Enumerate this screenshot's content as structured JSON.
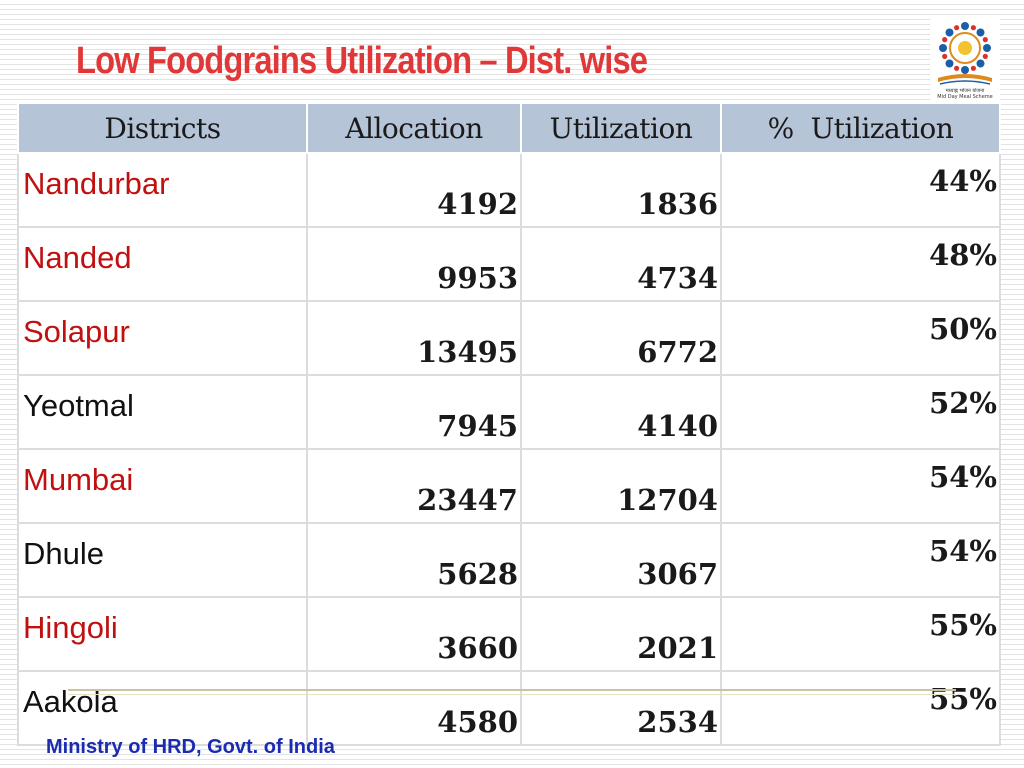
{
  "slide": {
    "title": "Low Foodgrains Utilization – Dist. wise",
    "footer": "Ministry of HRD, Govt. of India",
    "logo_caption_native": "मध्याह्न भोजन योजना",
    "logo_caption": "Mid Day Meal Scheme"
  },
  "table": {
    "headers": [
      "Districts",
      "Allocation",
      "Utilization",
      "%  Utilization"
    ],
    "rows": [
      {
        "district": "Nandurbar",
        "allocation": "4192",
        "utilization": "1836",
        "pct": "44%",
        "color": "#c01010"
      },
      {
        "district": "Nanded",
        "allocation": "9953",
        "utilization": "4734",
        "pct": "48%",
        "color": "#c01010"
      },
      {
        "district": "Solapur",
        "allocation": "13495",
        "utilization": "6772",
        "pct": "50%",
        "color": "#c01010"
      },
      {
        "district": "Yeotmal",
        "allocation": "7945",
        "utilization": "4140",
        "pct": "52%",
        "color": "#111111"
      },
      {
        "district": "Mumbai",
        "allocation": "23447",
        "utilization": "12704",
        "pct": "54%",
        "color": "#c01010"
      },
      {
        "district": "Dhule",
        "allocation": "5628",
        "utilization": "3067",
        "pct": "54%",
        "color": "#111111"
      },
      {
        "district": "Hingoli",
        "allocation": "3660",
        "utilization": "2021",
        "pct": "55%",
        "color": "#c01010"
      },
      {
        "district": "Aakola",
        "allocation": "4580",
        "utilization": "2534",
        "pct": "55%",
        "color": "#111111"
      }
    ]
  },
  "colors": {
    "title": "#e03838",
    "header_bg": "#b6c4d8",
    "highlight_district": "#c01010",
    "footer": "#1a2bb0"
  },
  "icons": {
    "logo": "mid-day-meal-logo-icon"
  }
}
